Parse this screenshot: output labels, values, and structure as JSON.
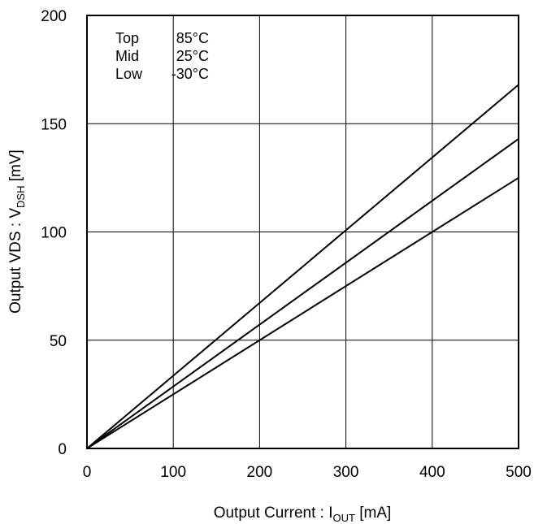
{
  "chart_data": {
    "type": "line",
    "xlabel": {
      "main": "Output Current : I",
      "sub": "OUT",
      "suffix": " [mA]"
    },
    "ylabel": {
      "main": "Output VDS : V",
      "sub": "DSH",
      "suffix": " [mV]"
    },
    "xlim": [
      0,
      500
    ],
    "ylim": [
      0,
      200
    ],
    "xticks": [
      0,
      100,
      200,
      300,
      400,
      500
    ],
    "yticks": [
      0,
      50,
      100,
      150,
      200
    ],
    "grid": true,
    "legend_placement": "top-left",
    "legend": [
      {
        "pos": "Top",
        "temp": "85°C"
      },
      {
        "pos": "Mid",
        "temp": "25°C"
      },
      {
        "pos": "Low",
        "temp": "-30°C"
      }
    ],
    "series": [
      {
        "x": [
          0,
          500
        ],
        "y": [
          0,
          168
        ]
      },
      {
        "x": [
          0,
          500
        ],
        "y": [
          0,
          143
        ]
      },
      {
        "x": [
          0,
          500
        ],
        "y": [
          0,
          125
        ]
      }
    ],
    "line_color": "#000000"
  }
}
